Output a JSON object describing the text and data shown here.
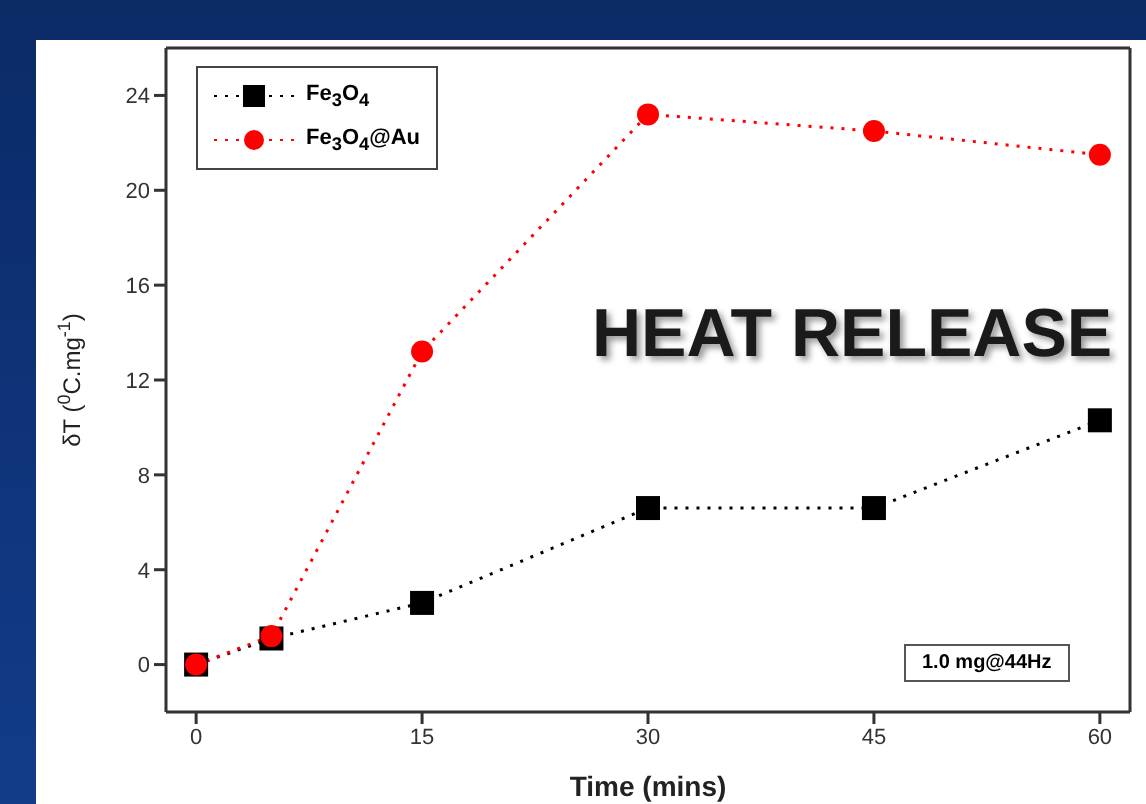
{
  "chart_data": {
    "type": "line",
    "xlabel": "Time (mins)",
    "ylabel": "δT ($^{0}$C.mg$^{-1}$)",
    "x": [
      0,
      5,
      15,
      30,
      45,
      60
    ],
    "series": [
      {
        "name": "Fe$_{3}$O$_{4}$",
        "color": "#000000",
        "marker": "square",
        "values": [
          0,
          1.1,
          2.6,
          6.6,
          6.6,
          10.3
        ]
      },
      {
        "name": "Fe$_{3}$O$_{4}$@Au",
        "color": "#ff0000",
        "marker": "circle",
        "values": [
          0,
          1.2,
          13.2,
          23.2,
          22.5,
          21.5
        ]
      }
    ],
    "xlim": [
      -2,
      62
    ],
    "xticks": [
      0,
      15,
      30,
      45,
      60
    ],
    "ylim": [
      -2,
      26
    ],
    "yticks": [
      0,
      4,
      8,
      12,
      16,
      20,
      24
    ],
    "grid": false,
    "legend": "top left",
    "line_style": "dotted",
    "annotations": [
      "HEAT RELEASE",
      "1.0 mg@44Hz"
    ]
  }
}
